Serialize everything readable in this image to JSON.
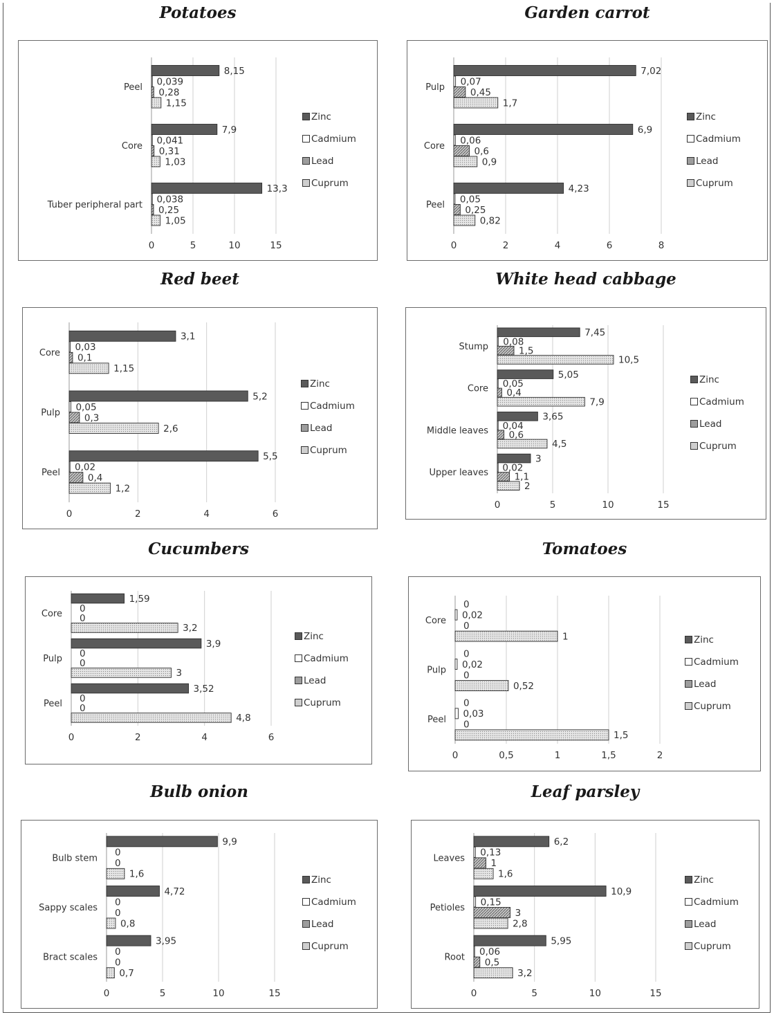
{
  "legend": {
    "labels": [
      "Zinc",
      "Cadmium",
      "Lead",
      "Cuprum"
    ],
    "colors": [
      "#5a5a5a",
      "#ffffff",
      "#9d9d9d",
      "#cfcfcf"
    ]
  },
  "chart_data": [
    {
      "type": "bar",
      "title": "Potatoes",
      "categories": [
        "Peel",
        "Core",
        "Tuber peripheral part"
      ],
      "series": [
        {
          "name": "Zinc",
          "values": [
            8.15,
            7.9,
            13.3
          ],
          "labels": [
            "8,15",
            "7,9",
            "13,3"
          ]
        },
        {
          "name": "Cadmium",
          "values": [
            0.039,
            0.041,
            0.038
          ],
          "labels": [
            "0,039",
            "0,041",
            "0,038"
          ]
        },
        {
          "name": "Lead",
          "values": [
            0.28,
            0.31,
            0.25
          ],
          "labels": [
            "0,28",
            "0,31",
            "0,25"
          ]
        },
        {
          "name": "Cuprum",
          "values": [
            1.15,
            1.03,
            1.05
          ],
          "labels": [
            "1,15",
            "1,03",
            "1,05"
          ]
        }
      ],
      "xlim": [
        0,
        15
      ],
      "ticks": [
        0,
        5,
        10,
        15
      ],
      "tick_labels": [
        "0",
        "5",
        "10",
        "15"
      ]
    },
    {
      "type": "bar",
      "title": "Garden carrot",
      "categories": [
        "Pulp",
        "Core",
        "Peel"
      ],
      "series": [
        {
          "name": "Zinc",
          "values": [
            7.02,
            6.9,
            4.23
          ],
          "labels": [
            "7,02",
            "6,9",
            "4,23"
          ]
        },
        {
          "name": "Cadmium",
          "values": [
            0.07,
            0.06,
            0.05
          ],
          "labels": [
            "0,07",
            "0,06",
            "0,05"
          ]
        },
        {
          "name": "Lead",
          "values": [
            0.45,
            0.6,
            0.25
          ],
          "labels": [
            "0,45",
            "0,6",
            "0,25"
          ]
        },
        {
          "name": "Cuprum",
          "values": [
            1.7,
            0.9,
            0.82
          ],
          "labels": [
            "1,7",
            "0,9",
            "0,82"
          ]
        }
      ],
      "xlim": [
        0,
        8
      ],
      "ticks": [
        0,
        2,
        4,
        6,
        8
      ],
      "tick_labels": [
        "0",
        "2",
        "4",
        "6",
        "8"
      ]
    },
    {
      "type": "bar",
      "title": "Red beet",
      "categories": [
        "Core",
        "Pulp",
        "Peel"
      ],
      "series": [
        {
          "name": "Zinc",
          "values": [
            3.1,
            5.2,
            5.5
          ],
          "labels": [
            "3,1",
            "5,2",
            "5,5"
          ]
        },
        {
          "name": "Cadmium",
          "values": [
            0.03,
            0.05,
            0.02
          ],
          "labels": [
            "0,03",
            "0,05",
            "0,02"
          ]
        },
        {
          "name": "Lead",
          "values": [
            0.1,
            0.3,
            0.4
          ],
          "labels": [
            "0,1",
            "0,3",
            "0,4"
          ]
        },
        {
          "name": "Cuprum",
          "values": [
            1.15,
            2.6,
            1.2
          ],
          "labels": [
            "1,15",
            "2,6",
            "1,2"
          ]
        }
      ],
      "xlim": [
        0,
        6
      ],
      "ticks": [
        0,
        2,
        4,
        6
      ],
      "tick_labels": [
        "0",
        "2",
        "4",
        "6"
      ]
    },
    {
      "type": "bar",
      "title": "White head cabbage",
      "categories": [
        "Stump",
        "Core",
        "Middle leaves",
        "Upper leaves"
      ],
      "series": [
        {
          "name": "Zinc",
          "values": [
            7.45,
            5.05,
            3.65,
            3
          ],
          "labels": [
            "7,45",
            "5,05",
            "3,65",
            "3"
          ]
        },
        {
          "name": "Cadmium",
          "values": [
            0.08,
            0.05,
            0.04,
            0.02
          ],
          "labels": [
            "0,08",
            "0,05",
            "0,04",
            "0,02"
          ]
        },
        {
          "name": "Lead",
          "values": [
            1.5,
            0.4,
            0.6,
            1.1
          ],
          "labels": [
            "1,5",
            "0,4",
            "0,6",
            "1,1"
          ]
        },
        {
          "name": "Cuprum",
          "values": [
            10.5,
            7.9,
            4.5,
            2
          ],
          "labels": [
            "10,5",
            "7,9",
            "4,5",
            "2"
          ]
        }
      ],
      "xlim": [
        0,
        15
      ],
      "ticks": [
        0,
        5,
        10,
        15
      ],
      "tick_labels": [
        "0",
        "5",
        "10",
        "15"
      ]
    },
    {
      "type": "bar",
      "title": "Cucumbers",
      "categories": [
        "Core",
        "Pulp",
        "Peel"
      ],
      "series": [
        {
          "name": "Zinc",
          "values": [
            1.59,
            3.9,
            3.52
          ],
          "labels": [
            "1,59",
            "3,9",
            "3,52"
          ]
        },
        {
          "name": "Cadmium",
          "values": [
            0,
            0,
            0
          ],
          "labels": [
            "0",
            "0",
            "0"
          ]
        },
        {
          "name": "Lead",
          "values": [
            0,
            0,
            0
          ],
          "labels": [
            "0",
            "0",
            "0"
          ]
        },
        {
          "name": "Cuprum",
          "values": [
            3.2,
            3,
            4.8
          ],
          "labels": [
            "3,2",
            "3",
            "4,8"
          ]
        }
      ],
      "xlim": [
        0,
        6
      ],
      "ticks": [
        0,
        2,
        4,
        6
      ],
      "tick_labels": [
        "0",
        "2",
        "4",
        "6"
      ]
    },
    {
      "type": "bar",
      "title": "Tomatoes",
      "categories": [
        "Core",
        "Pulp",
        "Peel"
      ],
      "series": [
        {
          "name": "Zinc",
          "values": [
            0,
            0,
            0
          ],
          "labels": [
            "0",
            "0",
            "0"
          ]
        },
        {
          "name": "Cadmium",
          "values": [
            0.02,
            0.02,
            0.03
          ],
          "labels": [
            "0,02",
            "0,02",
            "0,03"
          ]
        },
        {
          "name": "Lead",
          "values": [
            0,
            0,
            0
          ],
          "labels": [
            "0",
            "0",
            "0"
          ]
        },
        {
          "name": "Cuprum",
          "values": [
            1,
            0.52,
            1.5
          ],
          "labels": [
            "1",
            "0,52",
            "1,5"
          ]
        }
      ],
      "xlim": [
        0,
        2
      ],
      "ticks": [
        0,
        0.5,
        1,
        1.5,
        2
      ],
      "tick_labels": [
        "0",
        "0,5",
        "1",
        "1,5",
        "2"
      ]
    },
    {
      "type": "bar",
      "title": "Bulb onion",
      "categories": [
        "Bulb stem",
        "Sappy scales",
        "Bract scales"
      ],
      "series": [
        {
          "name": "Zinc",
          "values": [
            9.9,
            4.72,
            3.95
          ],
          "labels": [
            "9,9",
            "4,72",
            "3,95"
          ]
        },
        {
          "name": "Cadmium",
          "values": [
            0,
            0,
            0
          ],
          "labels": [
            "0",
            "0",
            "0"
          ]
        },
        {
          "name": "Lead",
          "values": [
            0,
            0,
            0
          ],
          "labels": [
            "0",
            "0",
            "0"
          ]
        },
        {
          "name": "Cuprum",
          "values": [
            1.6,
            0.8,
            0.7
          ],
          "labels": [
            "1,6",
            "0,8",
            "0,7"
          ]
        }
      ],
      "xlim": [
        0,
        15
      ],
      "ticks": [
        0,
        5,
        10,
        15
      ],
      "tick_labels": [
        "0",
        "5",
        "10",
        "15"
      ]
    },
    {
      "type": "bar",
      "title": "Leaf parsley",
      "categories": [
        "Leaves",
        "Petioles",
        "Root"
      ],
      "series": [
        {
          "name": "Zinc",
          "values": [
            6.2,
            10.9,
            5.95
          ],
          "labels": [
            "6,2",
            "10,9",
            "5,95"
          ]
        },
        {
          "name": "Cadmium",
          "values": [
            0.13,
            0.15,
            0.06
          ],
          "labels": [
            "0,13",
            "0,15",
            "0,06"
          ]
        },
        {
          "name": "Lead",
          "values": [
            1,
            3,
            0.5
          ],
          "labels": [
            "1",
            "3",
            "0,5"
          ]
        },
        {
          "name": "Cuprum",
          "values": [
            1.6,
            2.8,
            3.2
          ],
          "labels": [
            "1,6",
            "2,8",
            "3,2"
          ]
        }
      ],
      "xlim": [
        0,
        15
      ],
      "ticks": [
        0,
        5,
        10,
        15
      ],
      "tick_labels": [
        "0",
        "5",
        "10",
        "15"
      ]
    }
  ]
}
